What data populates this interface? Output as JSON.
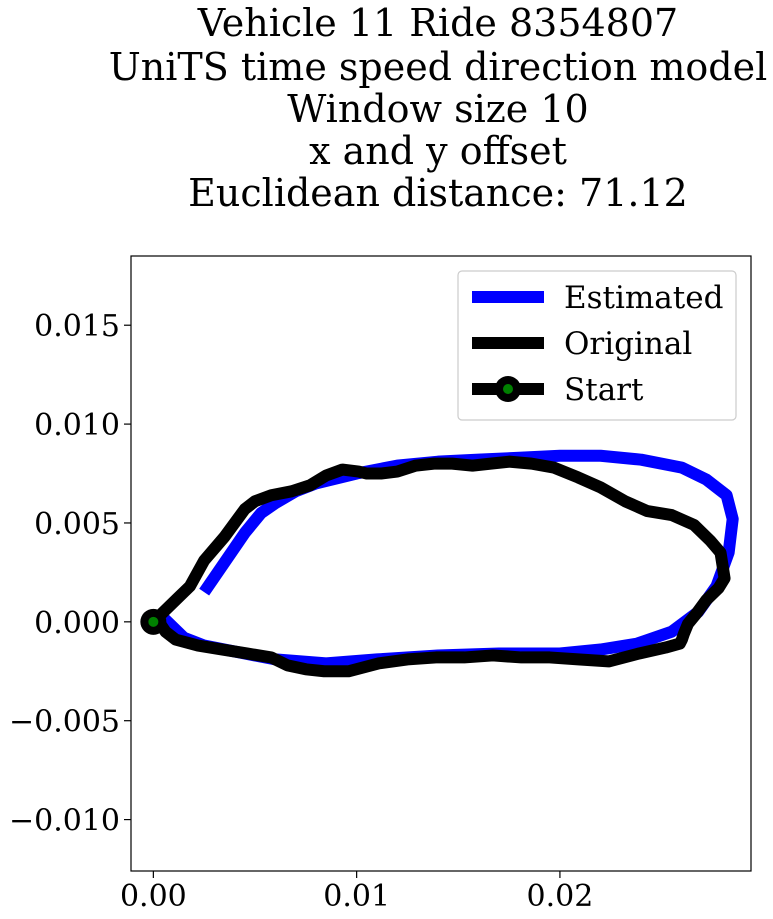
{
  "chart_data": {
    "type": "line",
    "title_lines": [
      "Vehicle 11 Ride 8354807",
      "UniTS time speed direction model",
      "Window size 10",
      "x and y offset",
      "Euclidean distance: 71.12"
    ],
    "xlabel": "",
    "ylabel": "",
    "xlim": [
      -0.0011,
      0.0294
    ],
    "ylim": [
      -0.0126,
      0.0185
    ],
    "x_ticks": [
      0.0,
      0.01,
      0.02
    ],
    "x_tick_labels": [
      "0.00",
      "0.01",
      "0.02"
    ],
    "y_ticks": [
      -0.01,
      -0.005,
      0.0,
      0.005,
      0.01,
      0.015
    ],
    "y_tick_labels": [
      "−0.010",
      "−0.005",
      "0.000",
      "0.005",
      "0.010",
      "0.015"
    ],
    "grid": false,
    "legend_position": "top-right",
    "series": [
      {
        "name": "Estimated",
        "color": "#0000ff",
        "x": [
          0.0025,
          0.0035,
          0.0045,
          0.0053,
          0.006,
          0.007,
          0.008,
          0.01,
          0.012,
          0.014,
          0.016,
          0.018,
          0.02,
          0.022,
          0.024,
          0.026,
          0.0272,
          0.0282,
          0.0285,
          0.0283,
          0.0277,
          0.0268,
          0.0255,
          0.0238,
          0.022,
          0.02,
          0.017,
          0.014,
          0.011,
          0.0085,
          0.006,
          0.004,
          0.0025,
          0.0015,
          0.001,
          0.0005,
          0.0
        ],
        "y": [
          0.0015,
          0.003,
          0.0045,
          0.0055,
          0.006,
          0.0066,
          0.007,
          0.0075,
          0.0079,
          0.0081,
          0.0082,
          0.0083,
          0.0084,
          0.0084,
          0.0082,
          0.0078,
          0.0072,
          0.0064,
          0.0052,
          0.0035,
          0.0018,
          0.0005,
          -0.0005,
          -0.0011,
          -0.0014,
          -0.0016,
          -0.0016,
          -0.0017,
          -0.0019,
          -0.0021,
          -0.0019,
          -0.0015,
          -0.0012,
          -0.0008,
          -0.0003,
          0.0002,
          0.0
        ]
      },
      {
        "name": "Original",
        "color": "#000000",
        "x": [
          0.0,
          0.0006,
          0.0012,
          0.0018,
          0.0025,
          0.0035,
          0.0045,
          0.005,
          0.0058,
          0.0068,
          0.0077,
          0.0085,
          0.0093,
          0.0101,
          0.0105,
          0.0112,
          0.012,
          0.0129,
          0.0138,
          0.0147,
          0.0157,
          0.0166,
          0.0175,
          0.0186,
          0.0197,
          0.0209,
          0.022,
          0.0232,
          0.0243,
          0.0255,
          0.0266,
          0.0274,
          0.0279,
          0.0281,
          0.0278,
          0.0272,
          0.0267,
          0.0263,
          0.0261,
          0.026,
          0.0259,
          0.0252,
          0.0239,
          0.0224,
          0.0209,
          0.0195,
          0.0181,
          0.0167,
          0.0153,
          0.0139,
          0.0125,
          0.0111,
          0.0096,
          0.0084,
          0.0075,
          0.0066,
          0.0058,
          0.0046,
          0.0034,
          0.0022,
          0.0011,
          0.0006,
          0.0004,
          0.0002,
          0.0
        ],
        "y": [
          0.0,
          0.0006,
          0.0012,
          0.0018,
          0.0031,
          0.0043,
          0.0057,
          0.0061,
          0.0064,
          0.0066,
          0.0069,
          0.0074,
          0.0077,
          0.0076,
          0.0075,
          0.0075,
          0.0076,
          0.0079,
          0.008,
          0.008,
          0.0079,
          0.008,
          0.0081,
          0.008,
          0.0078,
          0.0073,
          0.0068,
          0.0061,
          0.0056,
          0.0054,
          0.0049,
          0.0041,
          0.0035,
          0.0022,
          0.0017,
          0.0011,
          0.0004,
          -0.0001,
          -0.0006,
          -0.0009,
          -0.0011,
          -0.0013,
          -0.0016,
          -0.002,
          -0.0019,
          -0.0018,
          -0.0018,
          -0.0017,
          -0.0018,
          -0.0018,
          -0.0019,
          -0.0021,
          -0.0025,
          -0.0025,
          -0.0024,
          -0.0022,
          -0.0018,
          -0.0016,
          -0.0014,
          -0.0012,
          -0.0009,
          -0.0005,
          -0.0002,
          0.0,
          0.0
        ]
      }
    ],
    "start_point": {
      "name": "Start",
      "x": 0.0,
      "y": 0.0,
      "marker_color": "#008000",
      "edge_color": "#000000"
    },
    "legend_entries": [
      "Estimated",
      "Original",
      "Start"
    ]
  }
}
